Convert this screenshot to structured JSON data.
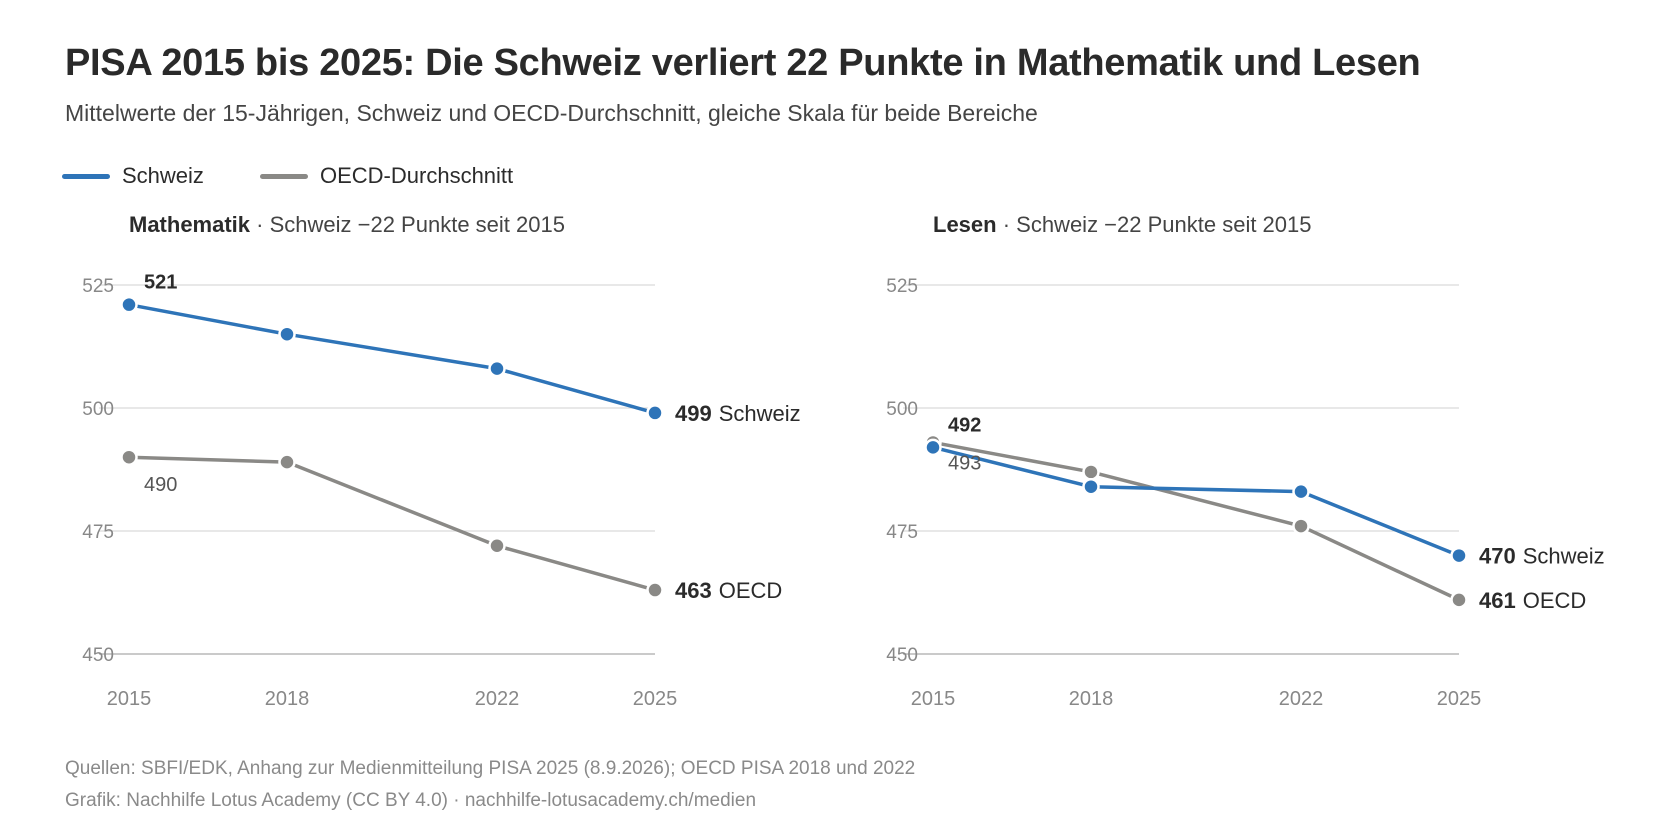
{
  "title": "PISA 2015 bis 2025: Die Schweiz verliert 22 Punkte in Mathematik und Lesen",
  "subtitle": "Mittelwerte der 15-Jährigen, Schweiz und OECD-Durchschnitt, gleiche Skala für beide Bereiche",
  "legend": {
    "schweiz": "Schweiz",
    "oecd": "OECD-Durchschnitt"
  },
  "colors": {
    "schweiz": "#2e74b8",
    "oecd": "#8a8986",
    "grid": "#d9d9d9",
    "axis": "#888888"
  },
  "sources": {
    "line1": "Quellen: SBFI/EDK, Anhang zur Medienmitteilung PISA 2025 (8.9.2026); OECD PISA 2018 und 2022",
    "line2": "Grafik: Nachhilfe Lotus Academy (CC BY 4.0) · nachhilfe-lotusacademy.ch/medien"
  },
  "chart_data": [
    {
      "type": "line",
      "panel_title": "Mathematik",
      "panel_note": " · Schweiz −22 Punkte seit 2015",
      "x": [
        2015,
        2018,
        2022,
        2025
      ],
      "ylim": [
        450,
        525
      ],
      "yticks": [
        450,
        475,
        500,
        525
      ],
      "grid": true,
      "series": [
        {
          "name": "Schweiz",
          "key": "schweiz",
          "values": [
            521,
            515,
            508,
            499
          ],
          "start_label": "521",
          "end_label_value": "499",
          "end_label_text": "Schweiz"
        },
        {
          "name": "OECD",
          "key": "oecd",
          "values": [
            490,
            489,
            472,
            463
          ],
          "start_label": "490",
          "end_label_value": "463",
          "end_label_text": "OECD"
        }
      ]
    },
    {
      "type": "line",
      "panel_title": "Lesen",
      "panel_note": " · Schweiz −22 Punkte seit 2015",
      "x": [
        2015,
        2018,
        2022,
        2025
      ],
      "ylim": [
        450,
        525
      ],
      "yticks": [
        450,
        475,
        500,
        525
      ],
      "grid": true,
      "series": [
        {
          "name": "Schweiz",
          "key": "schweiz",
          "values": [
            492,
            484,
            483,
            470
          ],
          "start_label": "492",
          "end_label_value": "470",
          "end_label_text": "Schweiz"
        },
        {
          "name": "OECD",
          "key": "oecd",
          "values": [
            493,
            487,
            476,
            461
          ],
          "start_label": "493",
          "end_label_value": "461",
          "end_label_text": "OECD"
        }
      ]
    }
  ]
}
